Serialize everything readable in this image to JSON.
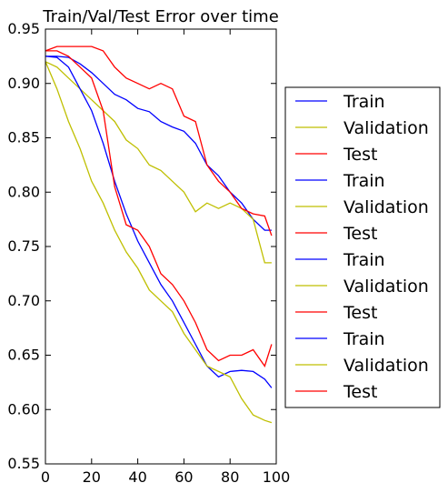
{
  "chart_data": {
    "type": "line",
    "title": "Train/Val/Test Error over time",
    "xlabel": "",
    "ylabel": "",
    "xlim": [
      0,
      100
    ],
    "ylim": [
      0.55,
      0.95
    ],
    "x_ticks": [
      "0",
      "20",
      "40",
      "60",
      "80",
      "100"
    ],
    "y_ticks": [
      "0.55",
      "0.60",
      "0.65",
      "0.70",
      "0.75",
      "0.80",
      "0.85",
      "0.90",
      "0.95"
    ],
    "grid": false,
    "legend_position": "right, outside",
    "series": [
      {
        "name": "Train",
        "color": "#0000ff",
        "x": [
          0,
          5,
          10,
          15,
          20,
          25,
          30,
          35,
          40,
          45,
          50,
          55,
          60,
          65,
          70,
          75,
          80,
          85,
          90,
          95,
          98
        ],
        "y": [
          0.925,
          0.925,
          0.924,
          0.918,
          0.91,
          0.9,
          0.89,
          0.885,
          0.877,
          0.874,
          0.865,
          0.86,
          0.856,
          0.845,
          0.825,
          0.815,
          0.8,
          0.79,
          0.775,
          0.765,
          0.765
        ]
      },
      {
        "name": "Validation",
        "color": "#bfbf00",
        "x": [
          0,
          5,
          10,
          15,
          20,
          25,
          30,
          35,
          40,
          45,
          50,
          55,
          60,
          65,
          70,
          75,
          80,
          85,
          90,
          95,
          98
        ],
        "y": [
          0.92,
          0.915,
          0.905,
          0.895,
          0.885,
          0.875,
          0.865,
          0.848,
          0.84,
          0.825,
          0.82,
          0.81,
          0.8,
          0.782,
          0.79,
          0.785,
          0.79,
          0.785,
          0.775,
          0.735,
          0.735
        ]
      },
      {
        "name": "Test",
        "color": "#ff0000",
        "x": [
          0,
          5,
          10,
          15,
          20,
          25,
          30,
          35,
          40,
          45,
          50,
          55,
          60,
          65,
          70,
          75,
          80,
          85,
          90,
          95,
          98
        ],
        "y": [
          0.93,
          0.934,
          0.934,
          0.934,
          0.934,
          0.93,
          0.915,
          0.905,
          0.9,
          0.895,
          0.9,
          0.895,
          0.87,
          0.865,
          0.825,
          0.81,
          0.8,
          0.785,
          0.78,
          0.778,
          0.76
        ]
      },
      {
        "name": "Train",
        "color": "#0000ff",
        "x": [
          0,
          5,
          10,
          15,
          20,
          25,
          30,
          35,
          40,
          45,
          50,
          55,
          60,
          65,
          70,
          75,
          80,
          85,
          90,
          95,
          98
        ],
        "y": [
          0.925,
          0.924,
          0.915,
          0.895,
          0.875,
          0.845,
          0.81,
          0.78,
          0.755,
          0.735,
          0.715,
          0.7,
          0.68,
          0.66,
          0.64,
          0.63,
          0.635,
          0.636,
          0.635,
          0.628,
          0.62
        ]
      },
      {
        "name": "Validation",
        "color": "#bfbf00",
        "x": [
          0,
          5,
          10,
          15,
          20,
          25,
          30,
          35,
          40,
          45,
          50,
          55,
          60,
          65,
          70,
          75,
          80,
          85,
          90,
          95,
          98
        ],
        "y": [
          0.92,
          0.895,
          0.865,
          0.84,
          0.81,
          0.79,
          0.765,
          0.745,
          0.73,
          0.71,
          0.7,
          0.69,
          0.67,
          0.655,
          0.64,
          0.635,
          0.63,
          0.61,
          0.595,
          0.59,
          0.588
        ]
      },
      {
        "name": "Test",
        "color": "#ff0000",
        "x": [
          0,
          5,
          10,
          15,
          20,
          25,
          30,
          35,
          40,
          45,
          50,
          55,
          60,
          65,
          70,
          75,
          80,
          85,
          90,
          95,
          98
        ],
        "y": [
          0.93,
          0.93,
          0.925,
          0.915,
          0.905,
          0.875,
          0.805,
          0.77,
          0.765,
          0.75,
          0.725,
          0.715,
          0.7,
          0.68,
          0.655,
          0.645,
          0.65,
          0.65,
          0.655,
          0.64,
          0.66
        ]
      }
    ],
    "legend": [
      "Train",
      "Validation",
      "Test",
      "Train",
      "Validation",
      "Test",
      "Train",
      "Validation",
      "Test",
      "Train",
      "Validation",
      "Test"
    ],
    "legend_colors": [
      "#0000ff",
      "#bfbf00",
      "#ff0000",
      "#0000ff",
      "#bfbf00",
      "#ff0000",
      "#0000ff",
      "#bfbf00",
      "#ff0000",
      "#0000ff",
      "#bfbf00",
      "#ff0000"
    ]
  }
}
